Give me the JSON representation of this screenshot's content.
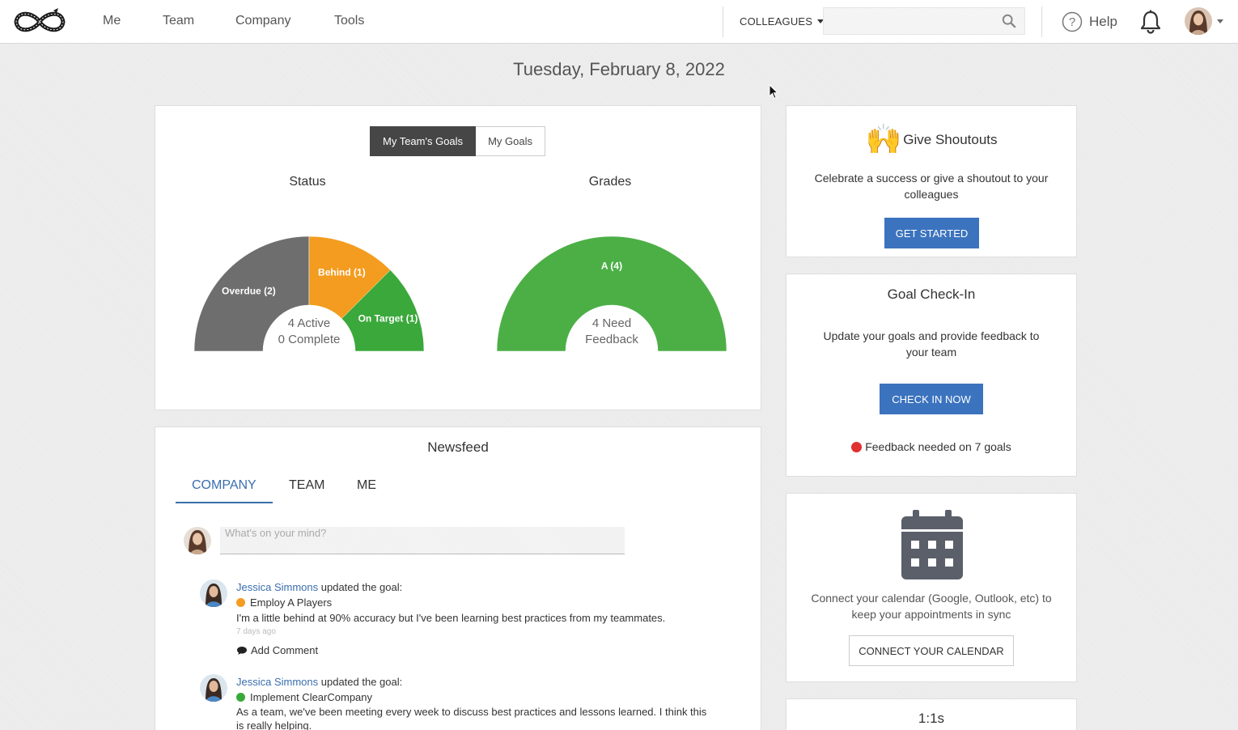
{
  "nav": {
    "items": [
      "Me",
      "Team",
      "Company",
      "Tools"
    ],
    "colleagues_label": "COLLEAGUES",
    "search_placeholder": "",
    "help_label": "Help"
  },
  "date_title": "Tuesday, February 8, 2022",
  "goals_card": {
    "toggle": {
      "active": "My Team's Goals",
      "inactive": "My Goals"
    },
    "status_chart": {
      "title": "Status",
      "center_line1": "4 Active",
      "center_line2": "0 Complete",
      "segments": [
        {
          "label": "Overdue (2)",
          "value": 2,
          "color": "#6e6e6e"
        },
        {
          "label": "Behind (1)",
          "value": 1,
          "color": "#f39c1f"
        },
        {
          "label": "On Target (1)",
          "value": 1,
          "color": "#3aa83a"
        }
      ]
    },
    "grades_chart": {
      "title": "Grades",
      "center_line1": "4 Need",
      "center_line2": "Feedback",
      "segments": [
        {
          "label": "A (4)",
          "value": 4,
          "color": "#4caf46"
        }
      ]
    }
  },
  "newsfeed": {
    "title": "Newsfeed",
    "tabs": [
      "COMPANY",
      "TEAM",
      "ME"
    ],
    "active_tab": "COMPANY",
    "input_placeholder": "What's on your mind?",
    "items": [
      {
        "author": "Jessica Simmons",
        "action": "updated the goal:",
        "goal": "Employ A Players",
        "goal_color": "#f39c1f",
        "text": "I'm a little behind at 90% accuracy but I've been learning best practices from my teammates.",
        "time": "7 days ago",
        "comment_label": "Add Comment"
      },
      {
        "author": "Jessica Simmons",
        "action": "updated the goal:",
        "goal": "Implement ClearCompany",
        "goal_color": "#3aa83a",
        "text": "As a team, we've been meeting every week to discuss best practices and lessons learned. I think this is really helping."
      }
    ]
  },
  "shoutouts": {
    "emoji": "🙌",
    "title": "Give Shoutouts",
    "text": "Celebrate a success or give a shoutout to your colleagues",
    "button": "GET STARTED"
  },
  "checkin": {
    "title": "Goal Check-In",
    "text": "Update your goals and provide feedback to your team",
    "button": "CHECK IN NOW",
    "alert": "Feedback needed on 7 goals",
    "alert_color": "#e03030"
  },
  "calendar": {
    "text": "Connect your calendar (Google, Outlook, etc) to keep your appointments in sync",
    "button": "CONNECT YOUR CALENDAR"
  },
  "one_on_ones": {
    "title": "1:1s"
  }
}
